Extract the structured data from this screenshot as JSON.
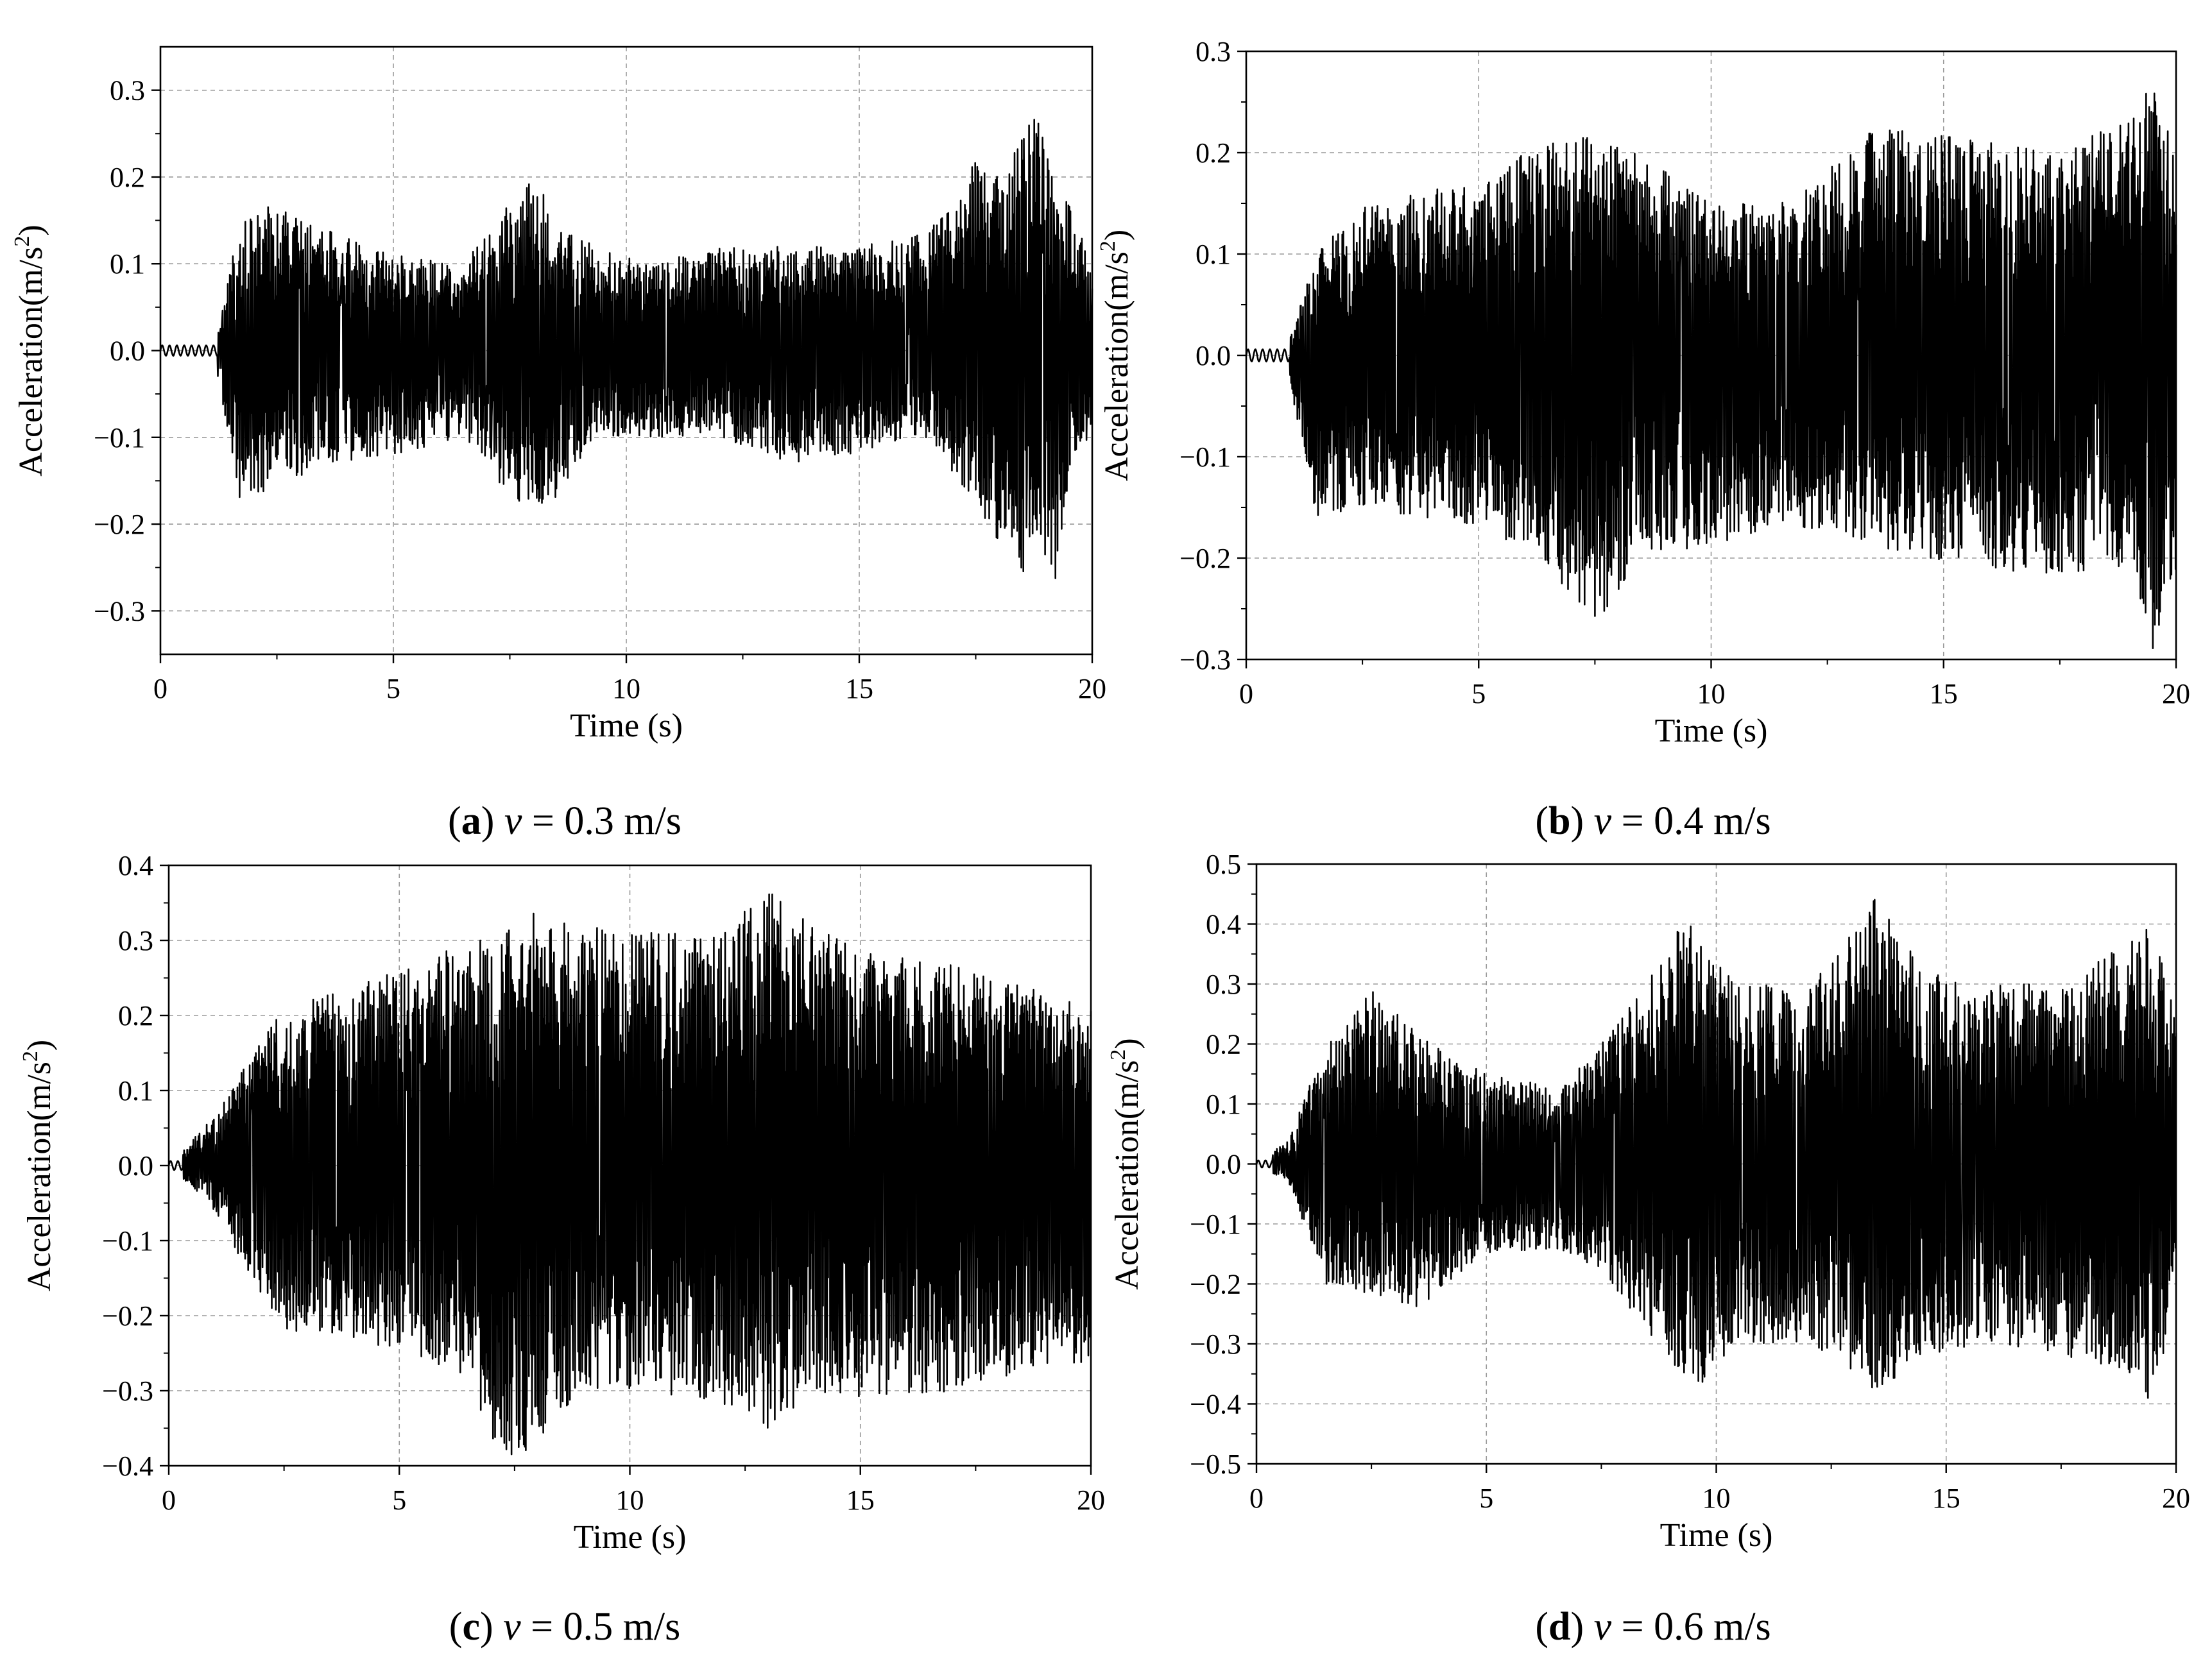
{
  "figure": {
    "panels": [
      {
        "letter": "a",
        "variable": "v",
        "rest": " = 0.3 m/s"
      },
      {
        "letter": "b",
        "variable": "v",
        "rest": " = 0.4 m/s"
      },
      {
        "letter": "c",
        "variable": "v",
        "rest": " = 0.5 m/s"
      },
      {
        "letter": "d",
        "variable": "v",
        "rest": " = 0.6 m/s"
      }
    ]
  },
  "chart_data": [
    {
      "type": "line",
      "title": "",
      "xlabel": "Time (s)",
      "ylabel_main": "Acceleration(m/s",
      "ylabel_sup": "2",
      "ylabel_close": ")",
      "xlim": [
        0,
        20
      ],
      "ylim": [
        -0.35,
        0.35
      ],
      "xticks": [
        0,
        5,
        10,
        15,
        20
      ],
      "xtick_labels": [
        "0",
        "5",
        "10",
        "15",
        "20"
      ],
      "yticks": [
        -0.3,
        -0.2,
        -0.1,
        0.0,
        0.1,
        0.2,
        0.3
      ],
      "ytick_labels": [
        "−0.3",
        "−0.2",
        "−0.1",
        "0.0",
        "0.1",
        "0.2",
        "0.3"
      ],
      "grid": true,
      "color": "#000000",
      "series": [
        {
          "name": "v = 0.3 m/s",
          "x": [
            0,
            1.2,
            1.7,
            2.5,
            3.5,
            5.0,
            6.5,
            7.5,
            8.0,
            8.6,
            9.3,
            10.5,
            12.0,
            13.5,
            15.0,
            16.5,
            17.5,
            18.0,
            18.5,
            18.8,
            19.2,
            19.6,
            20.0
          ],
          "y": [
            0.0,
            0.01,
            0.15,
            0.17,
            0.14,
            0.11,
            0.1,
            0.17,
            0.21,
            0.15,
            0.12,
            0.1,
            0.12,
            0.12,
            0.12,
            0.14,
            0.22,
            0.22,
            0.26,
            0.28,
            0.21,
            0.16,
            0.1
          ],
          "y_min": [
            0.0,
            -0.02,
            -0.17,
            -0.16,
            -0.13,
            -0.12,
            -0.1,
            -0.17,
            -0.18,
            -0.17,
            -0.1,
            -0.1,
            -0.1,
            -0.13,
            -0.12,
            -0.1,
            -0.18,
            -0.22,
            -0.26,
            -0.21,
            -0.27,
            -0.12,
            -0.1
          ]
        }
      ]
    },
    {
      "type": "line",
      "title": "",
      "xlabel": "Time (s)",
      "ylabel_main": "Acceleration(m/s",
      "ylabel_sup": "2",
      "ylabel_close": ")",
      "xlim": [
        0,
        20
      ],
      "ylim": [
        -0.3,
        0.3
      ],
      "xticks": [
        0,
        5,
        10,
        15,
        20
      ],
      "xtick_labels": [
        "0",
        "5",
        "10",
        "15",
        "20"
      ],
      "yticks": [
        -0.3,
        -0.2,
        -0.1,
        0.0,
        0.1,
        0.2,
        0.3
      ],
      "ytick_labels": [
        "−0.3",
        "−0.2",
        "−0.1",
        "0.0",
        "0.1",
        "0.2",
        "0.3"
      ],
      "grid": true,
      "color": "#000000",
      "series": [
        {
          "name": "v = 0.4 m/s",
          "x": [
            0,
            0.9,
            1.5,
            2.5,
            3.5,
            5.0,
            6.0,
            7.0,
            7.5,
            8.5,
            10.0,
            11.5,
            13.0,
            13.5,
            14.5,
            16.0,
            17.5,
            19.0,
            19.5,
            20.0
          ],
          "y": [
            0.0,
            0.01,
            0.1,
            0.15,
            0.16,
            0.17,
            0.2,
            0.23,
            0.22,
            0.2,
            0.15,
            0.15,
            0.2,
            0.23,
            0.22,
            0.21,
            0.2,
            0.24,
            0.27,
            0.2
          ],
          "y_min": [
            0.0,
            -0.02,
            -0.16,
            -0.15,
            -0.16,
            -0.17,
            -0.19,
            -0.24,
            -0.27,
            -0.2,
            -0.19,
            -0.17,
            -0.18,
            -0.19,
            -0.2,
            -0.21,
            -0.22,
            -0.21,
            -0.29,
            -0.22
          ]
        }
      ]
    },
    {
      "type": "line",
      "title": "",
      "xlabel": "Time (s)",
      "ylabel_main": "Acceleration(m/s",
      "ylabel_sup": "2",
      "ylabel_close": ")",
      "xlim": [
        0,
        20
      ],
      "ylim": [
        -0.4,
        0.4
      ],
      "xticks": [
        0,
        5,
        10,
        15,
        20
      ],
      "xtick_labels": [
        "0",
        "5",
        "10",
        "15",
        "20"
      ],
      "yticks": [
        -0.4,
        -0.3,
        -0.2,
        -0.1,
        0.0,
        0.1,
        0.2,
        0.3,
        0.4
      ],
      "ytick_labels": [
        "−0.4",
        "−0.3",
        "−0.2",
        "−0.1",
        "0.0",
        "0.1",
        "0.2",
        "0.3",
        "0.4"
      ],
      "grid": true,
      "color": "#000000",
      "series": [
        {
          "name": "v = 0.5 m/s",
          "x": [
            0,
            0.9,
            1.5,
            2.5,
            4.0,
            5.5,
            6.5,
            7.2,
            8.0,
            9.0,
            10.5,
            12.0,
            13.0,
            14.0,
            15.5,
            17.0,
            18.5,
            20.0
          ],
          "y": [
            0.0,
            0.06,
            0.12,
            0.21,
            0.24,
            0.27,
            0.31,
            0.31,
            0.34,
            0.32,
            0.31,
            0.31,
            0.37,
            0.32,
            0.28,
            0.27,
            0.24,
            0.21
          ],
          "y_min": [
            0.0,
            -0.05,
            -0.12,
            -0.22,
            -0.23,
            -0.26,
            -0.28,
            -0.4,
            -0.37,
            -0.3,
            -0.3,
            -0.32,
            -0.35,
            -0.3,
            -0.32,
            -0.3,
            -0.28,
            -0.26
          ]
        }
      ]
    },
    {
      "type": "line",
      "title": "",
      "xlabel": "Time (s)",
      "ylabel_main": "Acceleration(m/s",
      "ylabel_sup": "2",
      "ylabel_close": ")",
      "xlim": [
        0,
        20
      ],
      "ylim": [
        -0.5,
        0.5
      ],
      "xticks": [
        0,
        5,
        10,
        15,
        20
      ],
      "xtick_labels": [
        "0",
        "5",
        "10",
        "15",
        "20"
      ],
      "yticks": [
        -0.5,
        -0.4,
        -0.3,
        -0.2,
        -0.1,
        0.0,
        0.1,
        0.2,
        0.3,
        0.4,
        0.5
      ],
      "ytick_labels": [
        "−0.5",
        "−0.4",
        "−0.3",
        "−0.2",
        "−0.1",
        "0.0",
        "0.1",
        "0.2",
        "0.3",
        "0.4",
        "0.5"
      ],
      "grid": true,
      "color": "#000000",
      "series": [
        {
          "name": "v = 0.6 m/s",
          "x": [
            0,
            0.7,
            1.5,
            2.5,
            3.5,
            5.0,
            6.5,
            7.5,
            8.5,
            9.3,
            9.8,
            10.5,
            12.0,
            13.0,
            13.5,
            14.5,
            16.0,
            17.5,
            19.0,
            19.5,
            20.0
          ],
          "y": [
            0.0,
            0.04,
            0.2,
            0.29,
            0.22,
            0.15,
            0.13,
            0.2,
            0.3,
            0.42,
            0.35,
            0.3,
            0.3,
            0.4,
            0.45,
            0.32,
            0.3,
            0.3,
            0.38,
            0.4,
            0.25
          ],
          "y_min": [
            0.0,
            -0.03,
            -0.2,
            -0.22,
            -0.24,
            -0.15,
            -0.14,
            -0.18,
            -0.28,
            -0.36,
            -0.37,
            -0.3,
            -0.3,
            -0.35,
            -0.38,
            -0.32,
            -0.3,
            -0.32,
            -0.35,
            -0.41,
            -0.2
          ]
        }
      ]
    }
  ]
}
